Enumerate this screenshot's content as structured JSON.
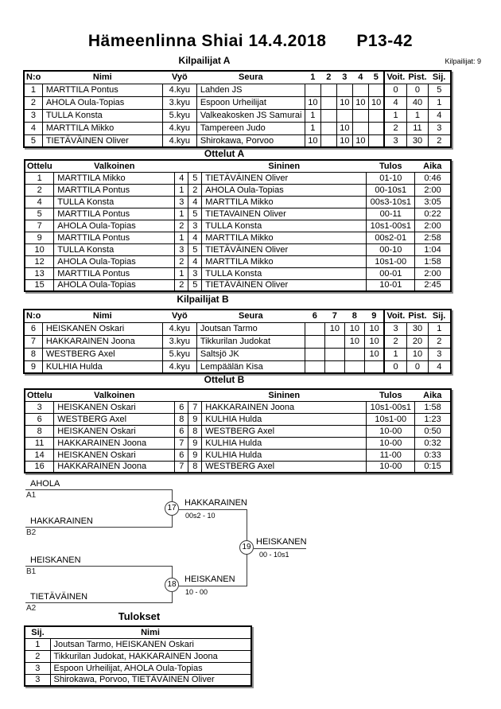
{
  "page": {
    "title": "Hämeenlinna Shiai  14.4.2018",
    "category": "P13-42",
    "competitors_count_label": "Kilpailijat: 9"
  },
  "pool_a": {
    "title": "Kilpailijat A",
    "headers": {
      "no": "N:o",
      "name": "Nimi",
      "belt": "Vyö",
      "club": "Seura",
      "cols": [
        "1",
        "2",
        "3",
        "4",
        "5"
      ],
      "wins": "Voit.",
      "points": "Pist.",
      "place": "Sij."
    },
    "rows": [
      {
        "no": "1",
        "name": "MARTTILA Pontus",
        "belt": "4.kyu",
        "club": "Lahden JS",
        "results": [
          "",
          "",
          "",
          "",
          ""
        ],
        "wins": "0",
        "points": "0",
        "place": "5"
      },
      {
        "no": "2",
        "name": "AHOLA Oula-Topias",
        "belt": "3.kyu",
        "club": "Espoon Urheilijat",
        "results": [
          "10",
          "",
          "10",
          "10",
          "10"
        ],
        "wins": "4",
        "points": "40",
        "place": "1"
      },
      {
        "no": "3",
        "name": "TULLA Konsta",
        "belt": "5.kyu",
        "club": "Valkeakosken JS Samurai",
        "results": [
          "1",
          "",
          "",
          "",
          ""
        ],
        "wins": "1",
        "points": "1",
        "place": "4"
      },
      {
        "no": "4",
        "name": "MARTTILA Mikko",
        "belt": "4.kyu",
        "club": "Tampereen Judo",
        "results": [
          "1",
          "",
          "10",
          "",
          ""
        ],
        "wins": "2",
        "points": "11",
        "place": "3"
      },
      {
        "no": "5",
        "name": "TIETÄVÄINEN Oliver",
        "belt": "4.kyu",
        "club": "Shirokawa, Porvoo",
        "results": [
          "10",
          "",
          "10",
          "10",
          ""
        ],
        "wins": "3",
        "points": "30",
        "place": "2"
      }
    ]
  },
  "matches_a": {
    "title": "Ottelut A",
    "headers": {
      "match": "Ottelu",
      "white": "Valkoinen",
      "blue": "Sininen",
      "result": "Tulos",
      "time": "Aika"
    },
    "rows": [
      {
        "no": "1",
        "white": "MARTTILA Mikko",
        "wn": "4",
        "bn": "5",
        "blue": "TIETÄVÄINEN Oliver",
        "result": "01-10",
        "time": "0:46"
      },
      {
        "no": "2",
        "white": "MARTTILA Pontus",
        "wn": "1",
        "bn": "2",
        "blue": "AHOLA Oula-Topias",
        "result": "00-10s1",
        "time": "2:00"
      },
      {
        "no": "4",
        "white": "TULLA Konsta",
        "wn": "3",
        "bn": "4",
        "blue": "MARTTILA Mikko",
        "result": "00s3-10s1",
        "time": "3:05"
      },
      {
        "no": "5",
        "white": "MARTTILA Pontus",
        "wn": "1",
        "bn": "5",
        "blue": "TIETAVAINEN Oliver",
        "result": "00-11",
        "time": "0:22"
      },
      {
        "no": "7",
        "white": "AHOLA Oula-Topias",
        "wn": "2",
        "bn": "3",
        "blue": "TULLA Konsta",
        "result": "10s1-00s1",
        "time": "2:00"
      },
      {
        "no": "9",
        "white": "MARTTILA Pontus",
        "wn": "1",
        "bn": "4",
        "blue": "MARTTILA Mikko",
        "result": "00s2-01",
        "time": "2:58"
      },
      {
        "no": "10",
        "white": "TULLA Konsta",
        "wn": "3",
        "bn": "5",
        "blue": "TIETÄVÄINEN Oliver",
        "result": "00-10",
        "time": "1:04"
      },
      {
        "no": "12",
        "white": "AHOLA Oula-Topias",
        "wn": "2",
        "bn": "4",
        "blue": "MARTTILA Mikko",
        "result": "10s1-00",
        "time": "1:58"
      },
      {
        "no": "13",
        "white": "MARTTILA Pontus",
        "wn": "1",
        "bn": "3",
        "blue": "TULLA Konsta",
        "result": "00-01",
        "time": "2:00"
      },
      {
        "no": "15",
        "white": "AHOLA Oula-Topias",
        "wn": "2",
        "bn": "5",
        "blue": "TIETÄVÄINEN Oliver",
        "result": "10-01",
        "time": "2:45"
      }
    ]
  },
  "pool_b": {
    "title": "Kilpailijat B",
    "headers": {
      "no": "N:o",
      "name": "Nimi",
      "belt": "Vyö",
      "club": "Seura",
      "cols": [
        "6",
        "7",
        "8",
        "9"
      ],
      "wins": "Voit.",
      "points": "Pist.",
      "place": "Sij."
    },
    "rows": [
      {
        "no": "6",
        "name": "HEISKANEN Oskari",
        "belt": "4.kyu",
        "club": "Joutsan Tarmo",
        "results": [
          "",
          "10",
          "10",
          "10"
        ],
        "wins": "3",
        "points": "30",
        "place": "1"
      },
      {
        "no": "7",
        "name": "HAKKARAINEN Joona",
        "belt": "3.kyu",
        "club": "Tikkurilan Judokat",
        "results": [
          "",
          "",
          "10",
          "10"
        ],
        "wins": "2",
        "points": "20",
        "place": "2"
      },
      {
        "no": "8",
        "name": "WESTBERG Axel",
        "belt": "5.kyu",
        "club": "Saltsjö JK",
        "results": [
          "",
          "",
          "",
          "10"
        ],
        "wins": "1",
        "points": "10",
        "place": "3"
      },
      {
        "no": "9",
        "name": "KULHIA Hulda",
        "belt": "4.kyu",
        "club": "Lempäälän Kisa",
        "results": [
          "",
          "",
          "",
          ""
        ],
        "wins": "0",
        "points": "0",
        "place": "4"
      }
    ]
  },
  "matches_b": {
    "title": "Ottelut B",
    "headers": {
      "match": "Ottelu",
      "white": "Valkoinen",
      "blue": "Sininen",
      "result": "Tulos",
      "time": "Aika"
    },
    "rows": [
      {
        "no": "3",
        "white": "HEISKANEN Oskari",
        "wn": "6",
        "bn": "7",
        "blue": "HAKKARAINEN Joona",
        "result": "10s1-00s1",
        "time": "1:58"
      },
      {
        "no": "6",
        "white": "WESTBERG Axel",
        "wn": "8",
        "bn": "9",
        "blue": "KULHIA Hulda",
        "result": "10s1-00",
        "time": "1:23"
      },
      {
        "no": "8",
        "white": "HEISKANEN Oskari",
        "wn": "6",
        "bn": "8",
        "blue": "WESTBERG Axel",
        "result": "10-00",
        "time": "0:50"
      },
      {
        "no": "11",
        "white": "HAKKARAINEN Joona",
        "wn": "7",
        "bn": "9",
        "blue": "KULHIA Hulda",
        "result": "10-00",
        "time": "0:32"
      },
      {
        "no": "14",
        "white": "HEISKANEN Oskari",
        "wn": "6",
        "bn": "9",
        "blue": "KULHIA Hulda",
        "result": "11-00",
        "time": "0:33"
      },
      {
        "no": "16",
        "white": "HAKKARAINEN Joona",
        "wn": "7",
        "bn": "8",
        "blue": "WESTBERG Axel",
        "result": "10-00",
        "time": "0:15"
      }
    ]
  },
  "bracket": {
    "semifinal_1": {
      "top_name": "AHOLA",
      "top_seed": "A1",
      "bottom_name": "HAKKARAINEN",
      "bottom_seed": "B2",
      "match_no": "17",
      "winner": "HAKKARAINEN",
      "score": "00s2 - 10"
    },
    "semifinal_2": {
      "top_name": "HEISKANEN",
      "top_seed": "B1",
      "bottom_name": "TIETÄVÄINEN",
      "bottom_seed": "A2",
      "match_no": "18",
      "winner": "HEISKANEN",
      "score": "10 - 00"
    },
    "final": {
      "match_no": "19",
      "winner": "HEISKANEN",
      "score": "00 - 10s1"
    }
  },
  "results": {
    "title": "Tulokset",
    "headers": {
      "place": "Sij.",
      "name": "Nimi"
    },
    "rows": [
      {
        "place": "1",
        "name": "Joutsan Tarmo, HEISKANEN Oskari"
      },
      {
        "place": "2",
        "name": "Tikkurilan Judokat, HAKKARAINEN Joona"
      },
      {
        "place": "3",
        "name": "Espoon Urheilijat, AHOLA Oula-Topias"
      },
      {
        "place": "3",
        "name": "Shirokawa, Porvoo, TIETÄVÄINEN Oliver"
      }
    ]
  }
}
